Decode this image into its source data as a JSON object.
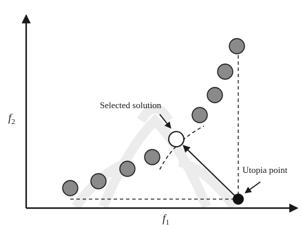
{
  "diagram": {
    "type": "pareto-front-selection",
    "axes": {
      "x_label_base": "f",
      "x_label_sub": "1",
      "y_label_base": "f",
      "y_label_sub": "2"
    },
    "annotations": {
      "selected_solution": "Selected solution",
      "utopia_point": "Utopia point"
    },
    "colors": {
      "pareto_point_fill": "#8a8a8a",
      "pareto_point_stroke": "#1a1a1a",
      "selected_fill": "#ffffff",
      "utopia_fill": "#111111",
      "line": "#1a1a1a",
      "watermark": "#ececec"
    },
    "pareto_point_count": 10
  }
}
